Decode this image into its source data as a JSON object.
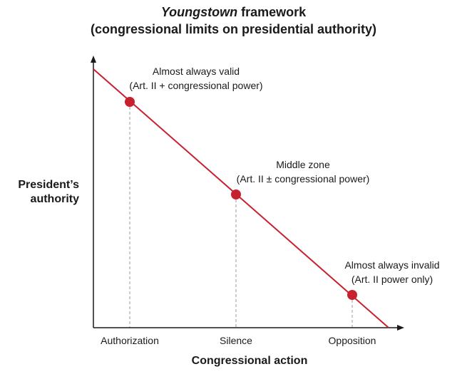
{
  "title": {
    "line1_italic": "Youngstown",
    "line1_rest": " framework",
    "line2": "(congressional limits on presidential authority)"
  },
  "axes": {
    "y_label_line1": "President’s",
    "y_label_line2": "authority",
    "x_label": "Congressional action"
  },
  "ticks": [
    "Authorization",
    "Silence",
    "Opposition"
  ],
  "zones": [
    {
      "title": "Almost always valid",
      "detail": "(Art. II + congressional power)"
    },
    {
      "title": "Middle zone",
      "detail": "(Art. II ± congressional power)"
    },
    {
      "title": "Almost always invalid",
      "detail": "(Art. II power only)"
    }
  ],
  "colors": {
    "line": "#c8202e",
    "point": "#c8202e",
    "axis": "#1a1a1a",
    "guide": "#999999"
  }
}
